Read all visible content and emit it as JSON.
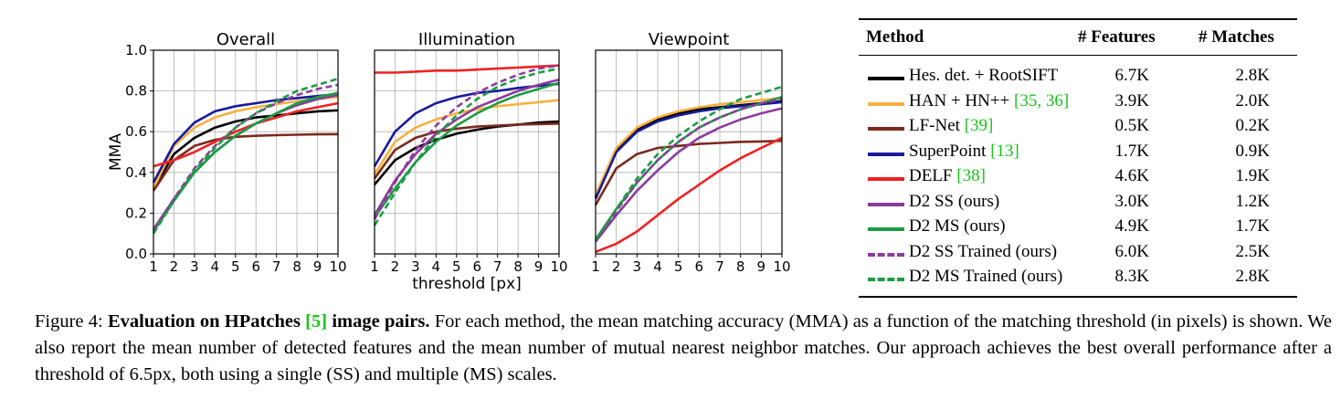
{
  "chart_data": [
    {
      "type": "line",
      "title": "Overall",
      "xlabel": "",
      "ylabel": "MMA",
      "xlim": [
        1,
        10
      ],
      "ylim": [
        0,
        1
      ],
      "x": [
        1,
        2,
        3,
        4,
        5,
        6,
        7,
        8,
        9,
        10
      ],
      "xticks": [
        "1",
        "2",
        "3",
        "4",
        "5",
        "6",
        "7",
        "8",
        "9",
        "10"
      ],
      "yticks": [
        "0.0",
        "0.2",
        "0.4",
        "0.6",
        "0.8",
        "1.0"
      ],
      "grid": true,
      "series": [
        {
          "name": "Hes. det. + RootSIFT",
          "color": "#000000",
          "dash": "solid",
          "values": [
            0.32,
            0.49,
            0.57,
            0.62,
            0.65,
            0.67,
            0.68,
            0.69,
            0.7,
            0.705
          ]
        },
        {
          "name": "HAN + HN++",
          "color": "#f7b040",
          "dash": "solid",
          "values": [
            0.32,
            0.53,
            0.62,
            0.67,
            0.7,
            0.72,
            0.735,
            0.75,
            0.76,
            0.77
          ]
        },
        {
          "name": "LF-Net",
          "color": "#7b2a1e",
          "dash": "solid",
          "values": [
            0.31,
            0.46,
            0.53,
            0.56,
            0.575,
            0.58,
            0.583,
            0.585,
            0.587,
            0.588
          ]
        },
        {
          "name": "SuperPoint",
          "color": "#1a1a9a",
          "dash": "solid",
          "values": [
            0.35,
            0.54,
            0.645,
            0.7,
            0.725,
            0.74,
            0.755,
            0.765,
            0.775,
            0.785
          ]
        },
        {
          "name": "DELF",
          "color": "#ee2222",
          "dash": "solid",
          "values": [
            0.43,
            0.46,
            0.5,
            0.55,
            0.6,
            0.64,
            0.67,
            0.7,
            0.72,
            0.74
          ]
        },
        {
          "name": "D2 SS",
          "color": "#8c3c9c",
          "dash": "solid",
          "values": [
            0.12,
            0.27,
            0.4,
            0.5,
            0.58,
            0.64,
            0.69,
            0.73,
            0.76,
            0.78
          ]
        },
        {
          "name": "D2 MS",
          "color": "#1c9c44",
          "dash": "solid",
          "values": [
            0.11,
            0.26,
            0.4,
            0.5,
            0.58,
            0.64,
            0.69,
            0.74,
            0.77,
            0.79
          ]
        },
        {
          "name": "D2 SS Trained",
          "color": "#8c3c9c",
          "dash": "dashed",
          "values": [
            0.12,
            0.27,
            0.42,
            0.53,
            0.62,
            0.69,
            0.74,
            0.78,
            0.81,
            0.83
          ]
        },
        {
          "name": "D2 MS Trained",
          "color": "#1c9c44",
          "dash": "dashed",
          "values": [
            0.1,
            0.26,
            0.41,
            0.52,
            0.62,
            0.69,
            0.75,
            0.8,
            0.83,
            0.86
          ]
        }
      ]
    },
    {
      "type": "line",
      "title": "Illumination",
      "xlabel": "threshold [px]",
      "ylabel": "",
      "xlim": [
        1,
        10
      ],
      "ylim": [
        0,
        1
      ],
      "x": [
        1,
        2,
        3,
        4,
        5,
        6,
        7,
        8,
        9,
        10
      ],
      "xticks": [
        "1",
        "2",
        "3",
        "4",
        "5",
        "6",
        "7",
        "8",
        "9",
        "10"
      ],
      "grid": true,
      "series": [
        {
          "name": "Hes. det. + RootSIFT",
          "color": "#000000",
          "dash": "solid",
          "values": [
            0.34,
            0.46,
            0.52,
            0.56,
            0.59,
            0.61,
            0.625,
            0.635,
            0.645,
            0.65
          ]
        },
        {
          "name": "HAN + HN++",
          "color": "#f7b040",
          "dash": "solid",
          "values": [
            0.39,
            0.55,
            0.62,
            0.66,
            0.69,
            0.71,
            0.725,
            0.735,
            0.745,
            0.755
          ]
        },
        {
          "name": "LF-Net",
          "color": "#7b2a1e",
          "dash": "solid",
          "values": [
            0.37,
            0.51,
            0.57,
            0.6,
            0.615,
            0.625,
            0.63,
            0.635,
            0.637,
            0.64
          ]
        },
        {
          "name": "SuperPoint",
          "color": "#1a1a9a",
          "dash": "solid",
          "values": [
            0.43,
            0.6,
            0.69,
            0.74,
            0.77,
            0.79,
            0.8,
            0.815,
            0.825,
            0.835
          ]
        },
        {
          "name": "DELF",
          "color": "#ee2222",
          "dash": "solid",
          "values": [
            0.89,
            0.89,
            0.895,
            0.9,
            0.9,
            0.905,
            0.91,
            0.915,
            0.92,
            0.925
          ]
        },
        {
          "name": "D2 SS",
          "color": "#8c3c9c",
          "dash": "solid",
          "values": [
            0.19,
            0.36,
            0.49,
            0.59,
            0.66,
            0.72,
            0.76,
            0.8,
            0.83,
            0.855
          ]
        },
        {
          "name": "D2 MS",
          "color": "#1c9c44",
          "dash": "solid",
          "values": [
            0.18,
            0.32,
            0.45,
            0.55,
            0.63,
            0.69,
            0.74,
            0.78,
            0.81,
            0.84
          ]
        },
        {
          "name": "D2 SS Trained",
          "color": "#8c3c9c",
          "dash": "dashed",
          "values": [
            0.17,
            0.35,
            0.51,
            0.63,
            0.72,
            0.79,
            0.84,
            0.88,
            0.91,
            0.925
          ]
        },
        {
          "name": "D2 MS Trained",
          "color": "#1c9c44",
          "dash": "dashed",
          "values": [
            0.14,
            0.3,
            0.45,
            0.58,
            0.68,
            0.76,
            0.82,
            0.86,
            0.89,
            0.91
          ]
        }
      ]
    },
    {
      "type": "line",
      "title": "Viewpoint",
      "xlabel": "",
      "ylabel": "",
      "xlim": [
        1,
        10
      ],
      "ylim": [
        0,
        1
      ],
      "x": [
        1,
        2,
        3,
        4,
        5,
        6,
        7,
        8,
        9,
        10
      ],
      "xticks": [
        "1",
        "2",
        "3",
        "4",
        "5",
        "6",
        "7",
        "8",
        "9",
        "10"
      ],
      "grid": true,
      "series": [
        {
          "name": "Hes. det. + RootSIFT",
          "color": "#000000",
          "dash": "solid",
          "values": [
            0.28,
            0.51,
            0.61,
            0.66,
            0.69,
            0.71,
            0.72,
            0.73,
            0.74,
            0.75
          ]
        },
        {
          "name": "HAN + HN++",
          "color": "#f7b040",
          "dash": "solid",
          "values": [
            0.29,
            0.52,
            0.62,
            0.67,
            0.7,
            0.72,
            0.735,
            0.745,
            0.755,
            0.765
          ]
        },
        {
          "name": "LF-Net",
          "color": "#7b2a1e",
          "dash": "solid",
          "values": [
            0.24,
            0.42,
            0.49,
            0.52,
            0.53,
            0.54,
            0.545,
            0.55,
            0.552,
            0.555
          ]
        },
        {
          "name": "SuperPoint",
          "color": "#1a1a9a",
          "dash": "solid",
          "values": [
            0.27,
            0.5,
            0.6,
            0.65,
            0.68,
            0.7,
            0.715,
            0.725,
            0.735,
            0.745
          ]
        },
        {
          "name": "DELF",
          "color": "#ee2222",
          "dash": "solid",
          "values": [
            0.01,
            0.05,
            0.11,
            0.19,
            0.27,
            0.34,
            0.41,
            0.47,
            0.52,
            0.57
          ]
        },
        {
          "name": "D2 SS",
          "color": "#8c3c9c",
          "dash": "solid",
          "values": [
            0.06,
            0.19,
            0.31,
            0.41,
            0.5,
            0.57,
            0.62,
            0.66,
            0.69,
            0.715
          ]
        },
        {
          "name": "D2 MS",
          "color": "#1c9c44",
          "dash": "solid",
          "values": [
            0.07,
            0.22,
            0.35,
            0.46,
            0.55,
            0.62,
            0.67,
            0.71,
            0.74,
            0.77
          ]
        },
        {
          "name": "D2 SS Trained",
          "color": "#8c3c9c",
          "dash": "dashed",
          "values": [
            0.06,
            0.21,
            0.35,
            0.46,
            0.55,
            0.62,
            0.67,
            0.71,
            0.74,
            0.76
          ]
        },
        {
          "name": "D2 MS Trained",
          "color": "#1c9c44",
          "dash": "dashed",
          "values": [
            0.07,
            0.22,
            0.37,
            0.49,
            0.58,
            0.65,
            0.71,
            0.76,
            0.79,
            0.82
          ]
        }
      ]
    }
  ],
  "table": {
    "headers": [
      "Method",
      "# Features",
      "# Matches"
    ],
    "rows": [
      {
        "method": "Hes. det. + RootSIFT",
        "ref": "",
        "features": "6.7K",
        "matches": "2.8K",
        "color": "#000000",
        "dash": "solid"
      },
      {
        "method": "HAN + HN++ ",
        "ref": "[35, 36]",
        "features": "3.9K",
        "matches": "2.0K",
        "color": "#f7b040",
        "dash": "solid"
      },
      {
        "method": "LF-Net ",
        "ref": "[39]",
        "features": "0.5K",
        "matches": "0.2K",
        "color": "#7b2a1e",
        "dash": "solid"
      },
      {
        "method": "SuperPoint ",
        "ref": "[13]",
        "features": "1.7K",
        "matches": "0.9K",
        "color": "#1a1a9a",
        "dash": "solid"
      },
      {
        "method": "DELF ",
        "ref": "[38]",
        "features": "4.6K",
        "matches": "1.9K",
        "color": "#ee2222",
        "dash": "solid"
      },
      {
        "method": "D2 SS (ours)",
        "ref": "",
        "features": "3.0K",
        "matches": "1.2K",
        "color": "#8c3c9c",
        "dash": "solid"
      },
      {
        "method": "D2 MS (ours)",
        "ref": "",
        "features": "4.9K",
        "matches": "1.7K",
        "color": "#1c9c44",
        "dash": "solid"
      },
      {
        "method": "D2 SS Trained (ours)",
        "ref": "",
        "features": "6.0K",
        "matches": "2.5K",
        "color": "#8c3c9c",
        "dash": "dashed"
      },
      {
        "method": "D2 MS Trained (ours)",
        "ref": "",
        "features": "8.3K",
        "matches": "2.8K",
        "color": "#1c9c44",
        "dash": "dashed"
      }
    ]
  },
  "caption": {
    "prefix": "Figure 4: ",
    "bold_a": "Evaluation on HPatches ",
    "bold_ref": "[5]",
    "bold_b": " image pairs.",
    "text": " For each method, the mean matching accuracy (MMA) as a function of the matching threshold (in pixels) is shown.  We also report the mean number of detected features and the mean number of mutual nearest neighbor matches. Our approach achieves the best overall performance after a threshold of 6.5px, both using a single (SS) and multiple (MS) scales."
  }
}
